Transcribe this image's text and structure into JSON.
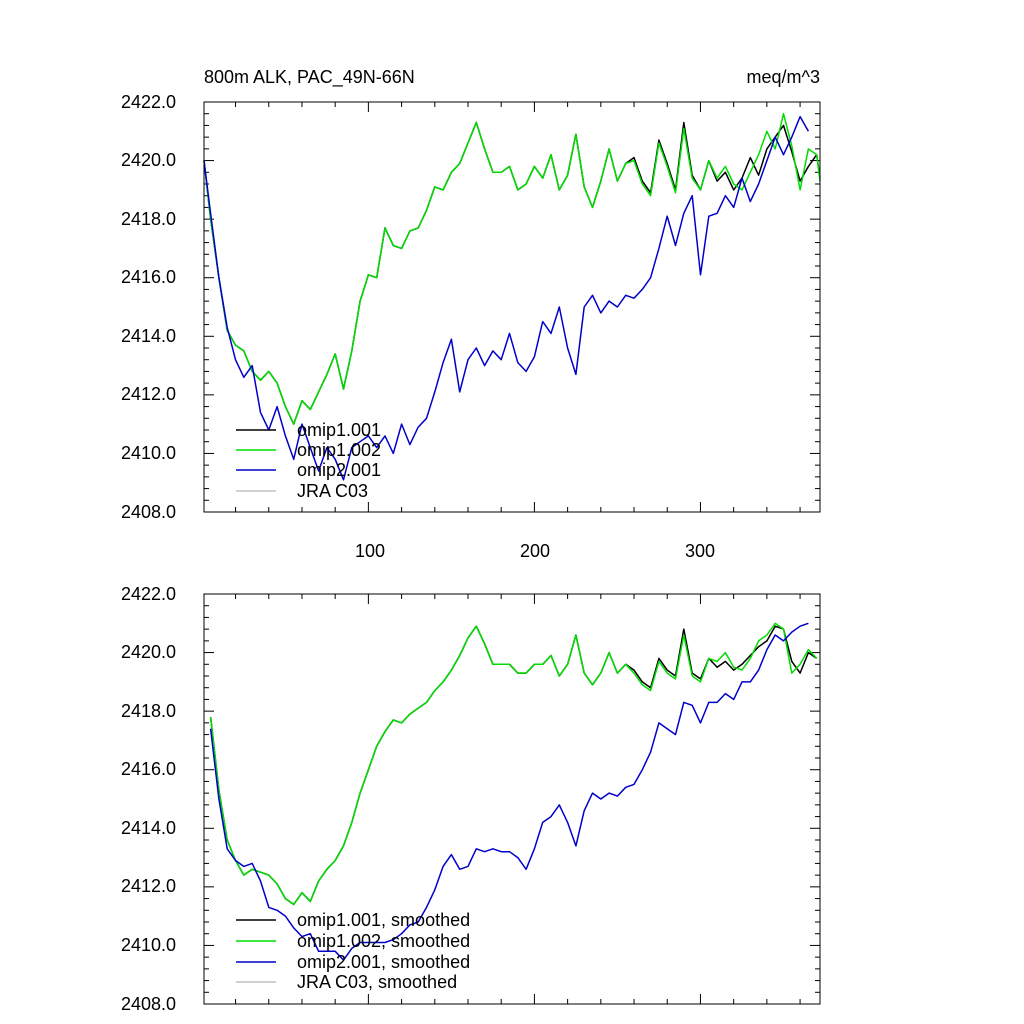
{
  "chart_data": [
    {
      "type": "line",
      "title": "800m ALK, PAC_49N-66N",
      "units_label": "meq/m^3",
      "xlim": [
        1,
        372
      ],
      "ylim": [
        2408.0,
        2422.0
      ],
      "y_ticks": [
        "2422.0",
        "2420.0",
        "2418.0",
        "2416.0",
        "2414.0",
        "2412.0",
        "2410.0",
        "2408.0"
      ],
      "x_ticks": [
        "100",
        "200",
        "300"
      ],
      "series": [
        {
          "name": "omip1.001",
          "color": "#000000",
          "x": [
            1,
            5,
            10,
            15,
            20,
            25,
            30,
            35,
            40,
            45,
            50,
            55,
            60,
            65,
            70,
            75,
            80,
            85,
            90,
            95,
            100,
            105,
            110,
            115,
            120,
            125,
            130,
            135,
            140,
            145,
            150,
            155,
            160,
            165,
            170,
            175,
            180,
            185,
            190,
            195,
            200,
            205,
            210,
            215,
            220,
            225,
            230,
            235,
            240,
            245,
            250,
            255,
            260,
            265,
            270,
            275,
            280,
            285,
            290,
            295,
            300,
            305,
            310,
            315,
            320,
            325,
            330,
            335,
            340,
            345,
            350,
            355,
            360,
            365,
            370,
            372
          ],
          "y": [
            2420.0,
            2418.0,
            2416.0,
            2414.2,
            2413.7,
            2413.5,
            2412.8,
            2412.5,
            2412.8,
            2412.4,
            2411.6,
            2411.0,
            2411.8,
            2411.5,
            2412.1,
            2412.7,
            2413.4,
            2412.2,
            2413.5,
            2415.2,
            2416.1,
            2416.0,
            2417.7,
            2417.1,
            2417.0,
            2417.6,
            2417.7,
            2418.3,
            2419.1,
            2419.0,
            2419.6,
            2419.9,
            2420.6,
            2421.3,
            2420.4,
            2419.6,
            2419.6,
            2419.8,
            2419.0,
            2419.2,
            2419.8,
            2419.4,
            2420.2,
            2419.0,
            2419.5,
            2420.9,
            2419.1,
            2418.4,
            2419.3,
            2420.4,
            2419.3,
            2419.9,
            2420.1,
            2419.3,
            2418.9,
            2420.7,
            2419.9,
            2419.0,
            2421.3,
            2419.5,
            2419.0,
            2420.0,
            2419.3,
            2419.6,
            2419.0,
            2419.4,
            2420.1,
            2419.5,
            2420.4,
            2420.8,
            2421.2,
            2420.3,
            2419.3,
            2419.8,
            2420.2,
            2419.4
          ]
        },
        {
          "name": "omip1.002",
          "color": "#00dd00",
          "x": [
            1,
            5,
            10,
            15,
            20,
            25,
            30,
            35,
            40,
            45,
            50,
            55,
            60,
            65,
            70,
            75,
            80,
            85,
            90,
            95,
            100,
            105,
            110,
            115,
            120,
            125,
            130,
            135,
            140,
            145,
            150,
            155,
            160,
            165,
            170,
            175,
            180,
            185,
            190,
            195,
            200,
            205,
            210,
            215,
            220,
            225,
            230,
            235,
            240,
            245,
            250,
            255,
            260,
            265,
            270,
            275,
            280,
            285,
            290,
            295,
            300,
            305,
            310,
            315,
            320,
            325,
            330,
            335,
            340,
            345,
            350,
            355,
            360,
            365,
            370,
            372
          ],
          "y": [
            2420.0,
            2418.0,
            2416.0,
            2414.2,
            2413.7,
            2413.5,
            2412.8,
            2412.5,
            2412.8,
            2412.4,
            2411.6,
            2411.0,
            2411.8,
            2411.5,
            2412.1,
            2412.7,
            2413.4,
            2412.2,
            2413.5,
            2415.2,
            2416.1,
            2416.0,
            2417.7,
            2417.1,
            2417.0,
            2417.6,
            2417.7,
            2418.3,
            2419.1,
            2419.0,
            2419.6,
            2419.9,
            2420.6,
            2421.3,
            2420.4,
            2419.6,
            2419.6,
            2419.8,
            2419.0,
            2419.2,
            2419.8,
            2419.4,
            2420.2,
            2419.0,
            2419.5,
            2420.9,
            2419.1,
            2418.4,
            2419.3,
            2420.4,
            2419.3,
            2419.9,
            2420.0,
            2419.2,
            2418.8,
            2420.6,
            2419.8,
            2418.9,
            2421.1,
            2419.4,
            2419.0,
            2420.0,
            2419.4,
            2419.8,
            2419.2,
            2419.0,
            2419.6,
            2420.2,
            2421.0,
            2420.4,
            2421.6,
            2420.5,
            2419.0,
            2420.4,
            2420.2,
            2419.3
          ]
        },
        {
          "name": "omip2.001",
          "color": "#0000cc",
          "x": [
            1,
            5,
            10,
            15,
            20,
            25,
            30,
            35,
            40,
            45,
            50,
            55,
            60,
            65,
            70,
            75,
            80,
            85,
            90,
            95,
            100,
            105,
            110,
            115,
            120,
            125,
            130,
            135,
            140,
            145,
            150,
            155,
            160,
            165,
            170,
            175,
            180,
            185,
            190,
            195,
            200,
            205,
            210,
            215,
            220,
            225,
            230,
            235,
            240,
            245,
            250,
            255,
            260,
            265,
            270,
            275,
            280,
            285,
            290,
            295,
            300,
            305,
            310,
            315,
            320,
            325,
            330,
            335,
            340,
            345,
            350,
            355,
            360,
            365
          ],
          "y": [
            2420.0,
            2418.2,
            2416.0,
            2414.3,
            2413.2,
            2412.6,
            2413.0,
            2411.4,
            2410.8,
            2411.6,
            2410.6,
            2409.8,
            2411.0,
            2410.2,
            2409.4,
            2410.2,
            2409.8,
            2409.1,
            2410.2,
            2410.4,
            2410.6,
            2410.2,
            2410.6,
            2410.0,
            2411.0,
            2410.3,
            2410.9,
            2411.2,
            2412.1,
            2413.1,
            2413.9,
            2412.1,
            2413.2,
            2413.6,
            2413.0,
            2413.5,
            2413.2,
            2414.1,
            2413.1,
            2412.8,
            2413.3,
            2414.5,
            2414.1,
            2415.0,
            2413.6,
            2412.7,
            2415.0,
            2415.4,
            2414.8,
            2415.2,
            2415.0,
            2415.4,
            2415.3,
            2415.6,
            2416.0,
            2417.0,
            2418.1,
            2417.1,
            2418.2,
            2418.8,
            2416.1,
            2418.1,
            2418.2,
            2418.8,
            2418.4,
            2419.4,
            2418.6,
            2419.2,
            2420.0,
            2420.8,
            2420.2,
            2420.8,
            2421.5,
            2421.0
          ]
        },
        {
          "name": "JRA C03",
          "color": "#c0c0c0",
          "x": [],
          "y": []
        }
      ]
    },
    {
      "type": "line",
      "title": "",
      "xlim": [
        1,
        372
      ],
      "ylim": [
        2408.0,
        2422.0
      ],
      "y_ticks": [
        "2422.0",
        "2420.0",
        "2418.0",
        "2416.0",
        "2414.0",
        "2412.0",
        "2410.0",
        "2408.0"
      ],
      "x_ticks": [],
      "series": [
        {
          "name": "omip1.001, smoothed",
          "color": "#000000",
          "x": [
            5,
            10,
            15,
            20,
            25,
            30,
            35,
            40,
            45,
            50,
            55,
            60,
            65,
            70,
            75,
            80,
            85,
            90,
            95,
            100,
            105,
            110,
            115,
            120,
            125,
            130,
            135,
            140,
            145,
            150,
            155,
            160,
            165,
            170,
            175,
            180,
            185,
            190,
            195,
            200,
            205,
            210,
            215,
            220,
            225,
            230,
            235,
            240,
            245,
            250,
            255,
            260,
            265,
            270,
            275,
            280,
            285,
            290,
            295,
            300,
            305,
            310,
            315,
            320,
            325,
            330,
            335,
            340,
            345,
            350,
            355,
            360,
            365,
            370
          ],
          "y": [
            2417.8,
            2415.3,
            2413.6,
            2412.9,
            2412.4,
            2412.6,
            2412.5,
            2412.4,
            2412.1,
            2411.6,
            2411.4,
            2411.8,
            2411.5,
            2412.2,
            2412.6,
            2412.9,
            2413.4,
            2414.2,
            2415.2,
            2416.0,
            2416.8,
            2417.3,
            2417.7,
            2417.6,
            2417.9,
            2418.1,
            2418.3,
            2418.7,
            2419.0,
            2419.4,
            2419.9,
            2420.5,
            2420.9,
            2420.3,
            2419.6,
            2419.6,
            2419.6,
            2419.3,
            2419.3,
            2419.6,
            2419.6,
            2419.9,
            2419.2,
            2419.6,
            2420.6,
            2419.3,
            2418.9,
            2419.3,
            2420.0,
            2419.3,
            2419.6,
            2419.4,
            2419.0,
            2418.8,
            2419.8,
            2419.4,
            2419.2,
            2420.8,
            2419.3,
            2419.1,
            2419.8,
            2419.5,
            2419.7,
            2419.4,
            2419.6,
            2419.9,
            2420.2,
            2420.4,
            2420.9,
            2420.8,
            2419.7,
            2419.3,
            2420.0,
            2419.8
          ]
        },
        {
          "name": "omip1.002, smoothed",
          "color": "#00dd00",
          "x": [
            5,
            10,
            15,
            20,
            25,
            30,
            35,
            40,
            45,
            50,
            55,
            60,
            65,
            70,
            75,
            80,
            85,
            90,
            95,
            100,
            105,
            110,
            115,
            120,
            125,
            130,
            135,
            140,
            145,
            150,
            155,
            160,
            165,
            170,
            175,
            180,
            185,
            190,
            195,
            200,
            205,
            210,
            215,
            220,
            225,
            230,
            235,
            240,
            245,
            250,
            255,
            260,
            265,
            270,
            275,
            280,
            285,
            290,
            295,
            300,
            305,
            310,
            315,
            320,
            325,
            330,
            335,
            340,
            345,
            350,
            355,
            360,
            365,
            370
          ],
          "y": [
            2417.8,
            2415.3,
            2413.6,
            2412.9,
            2412.4,
            2412.6,
            2412.5,
            2412.4,
            2412.1,
            2411.6,
            2411.4,
            2411.8,
            2411.5,
            2412.2,
            2412.6,
            2412.9,
            2413.4,
            2414.2,
            2415.2,
            2416.0,
            2416.8,
            2417.3,
            2417.7,
            2417.6,
            2417.9,
            2418.1,
            2418.3,
            2418.7,
            2419.0,
            2419.4,
            2419.9,
            2420.5,
            2420.9,
            2420.3,
            2419.6,
            2419.6,
            2419.6,
            2419.3,
            2419.3,
            2419.6,
            2419.6,
            2419.9,
            2419.2,
            2419.6,
            2420.6,
            2419.3,
            2418.9,
            2419.3,
            2420.0,
            2419.3,
            2419.6,
            2419.3,
            2418.9,
            2418.7,
            2419.7,
            2419.3,
            2419.1,
            2420.6,
            2419.2,
            2419.0,
            2419.8,
            2419.7,
            2420.0,
            2419.5,
            2419.4,
            2419.8,
            2420.4,
            2420.6,
            2421.0,
            2420.8,
            2419.3,
            2419.6,
            2420.1,
            2419.8
          ]
        },
        {
          "name": "omip2.001, smoothed",
          "color": "#0000cc",
          "x": [
            5,
            10,
            15,
            20,
            25,
            30,
            35,
            40,
            45,
            50,
            55,
            60,
            65,
            70,
            75,
            80,
            85,
            90,
            95,
            100,
            105,
            110,
            115,
            120,
            125,
            130,
            135,
            140,
            145,
            150,
            155,
            160,
            165,
            170,
            175,
            180,
            185,
            190,
            195,
            200,
            205,
            210,
            215,
            220,
            225,
            230,
            235,
            240,
            245,
            250,
            255,
            260,
            265,
            270,
            275,
            280,
            285,
            290,
            295,
            300,
            305,
            310,
            315,
            320,
            325,
            330,
            335,
            340,
            345,
            350,
            355,
            360,
            365
          ],
          "y": [
            2417.4,
            2415.0,
            2413.3,
            2412.9,
            2412.7,
            2412.8,
            2412.2,
            2411.3,
            2411.2,
            2411.0,
            2410.6,
            2410.3,
            2410.4,
            2409.8,
            2409.8,
            2409.8,
            2409.5,
            2409.9,
            2410.1,
            2410.1,
            2410.1,
            2410.1,
            2410.2,
            2410.4,
            2410.7,
            2410.8,
            2411.3,
            2411.9,
            2412.7,
            2413.1,
            2412.6,
            2412.7,
            2413.3,
            2413.2,
            2413.3,
            2413.2,
            2413.2,
            2413.0,
            2412.6,
            2413.3,
            2414.2,
            2414.4,
            2414.8,
            2414.2,
            2413.4,
            2414.6,
            2415.2,
            2415.0,
            2415.2,
            2415.1,
            2415.4,
            2415.5,
            2416.0,
            2416.6,
            2417.6,
            2417.4,
            2417.2,
            2418.3,
            2418.2,
            2417.6,
            2418.3,
            2418.3,
            2418.6,
            2418.4,
            2419.0,
            2419.0,
            2419.4,
            2420.1,
            2420.6,
            2420.4,
            2420.7,
            2420.9,
            2421.0
          ]
        },
        {
          "name": "JRA C03, smoothed",
          "color": "#c0c0c0",
          "x": [],
          "y": []
        }
      ]
    }
  ]
}
